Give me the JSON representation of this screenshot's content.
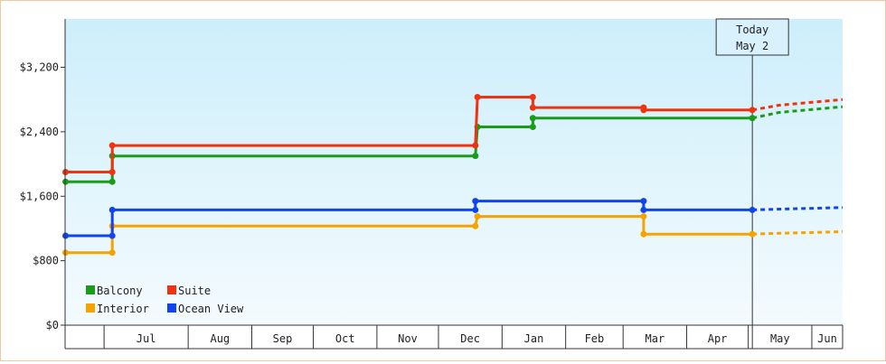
{
  "chart_data": {
    "type": "line",
    "subtype": "step",
    "xlabel": "",
    "ylabel": "",
    "ylim": [
      0,
      3800
    ],
    "y_ticks": [
      {
        "value": 0,
        "label": "$0"
      },
      {
        "value": 800,
        "label": "$800"
      },
      {
        "value": 1600,
        "label": "$1,600"
      },
      {
        "value": 2400,
        "label": "$2,400"
      },
      {
        "value": 3200,
        "label": "$3,200"
      }
    ],
    "xlim": [
      "2013-06-01",
      "2014-06-15"
    ],
    "month_ticks": [
      {
        "label": "Jul",
        "start": "2013-06-20",
        "end": "2013-07-31"
      },
      {
        "label": "Aug",
        "start": "2013-07-31",
        "end": "2013-08-31"
      },
      {
        "label": "Sep",
        "start": "2013-08-31",
        "end": "2013-09-30"
      },
      {
        "label": "Oct",
        "start": "2013-09-30",
        "end": "2013-10-31"
      },
      {
        "label": "Nov",
        "start": "2013-10-31",
        "end": "2013-11-30"
      },
      {
        "label": "Dec",
        "start": "2013-11-30",
        "end": "2013-12-31"
      },
      {
        "label": "Jan",
        "start": "2013-12-31",
        "end": "2014-01-31"
      },
      {
        "label": "Feb",
        "start": "2014-01-31",
        "end": "2014-02-28"
      },
      {
        "label": "Mar",
        "start": "2014-02-28",
        "end": "2014-03-31"
      },
      {
        "label": "Apr",
        "start": "2014-03-31",
        "end": "2014-04-30"
      },
      {
        "label": "May",
        "start": "2014-04-30",
        "end": "2014-05-31"
      },
      {
        "label": "Jun",
        "start": "2014-05-31",
        "end": "2014-06-15"
      }
    ],
    "today": {
      "date": "2014-05-02",
      "label_line1": "Today",
      "label_line2": "May 2"
    },
    "series": [
      {
        "name": "Balcony",
        "color": "#1a9c1a",
        "points": [
          {
            "date": "2013-06-01",
            "value": 1780
          },
          {
            "date": "2013-06-24",
            "value": 1780
          },
          {
            "date": "2013-06-24",
            "value": 2100
          },
          {
            "date": "2013-12-18",
            "value": 2100
          },
          {
            "date": "2013-12-19",
            "value": 2460
          },
          {
            "date": "2014-01-15",
            "value": 2460
          },
          {
            "date": "2014-01-15",
            "value": 2570
          },
          {
            "date": "2014-05-02",
            "value": 2570
          }
        ],
        "forecast": [
          {
            "date": "2014-05-02",
            "value": 2570
          },
          {
            "date": "2014-05-15",
            "value": 2640
          },
          {
            "date": "2014-06-15",
            "value": 2710
          }
        ]
      },
      {
        "name": "Suite",
        "color": "#ee3311",
        "points": [
          {
            "date": "2013-06-01",
            "value": 1900
          },
          {
            "date": "2013-06-24",
            "value": 1900
          },
          {
            "date": "2013-06-24",
            "value": 2230
          },
          {
            "date": "2013-12-18",
            "value": 2230
          },
          {
            "date": "2013-12-19",
            "value": 2830
          },
          {
            "date": "2014-01-15",
            "value": 2830
          },
          {
            "date": "2014-01-15",
            "value": 2700
          },
          {
            "date": "2014-03-10",
            "value": 2700
          },
          {
            "date": "2014-03-10",
            "value": 2670
          },
          {
            "date": "2014-05-02",
            "value": 2670
          }
        ],
        "forecast": [
          {
            "date": "2014-05-02",
            "value": 2670
          },
          {
            "date": "2014-05-15",
            "value": 2730
          },
          {
            "date": "2014-06-15",
            "value": 2800
          }
        ]
      },
      {
        "name": "Interior",
        "color": "#f5a300",
        "points": [
          {
            "date": "2013-06-01",
            "value": 900
          },
          {
            "date": "2013-06-24",
            "value": 900
          },
          {
            "date": "2013-06-24",
            "value": 1230
          },
          {
            "date": "2013-12-18",
            "value": 1230
          },
          {
            "date": "2013-12-19",
            "value": 1350
          },
          {
            "date": "2014-03-10",
            "value": 1350
          },
          {
            "date": "2014-03-10",
            "value": 1130
          },
          {
            "date": "2014-05-02",
            "value": 1130
          }
        ],
        "forecast": [
          {
            "date": "2014-05-02",
            "value": 1130
          },
          {
            "date": "2014-05-15",
            "value": 1140
          },
          {
            "date": "2014-06-15",
            "value": 1160
          }
        ]
      },
      {
        "name": "Ocean View",
        "color": "#1144ee",
        "points": [
          {
            "date": "2013-06-01",
            "value": 1110
          },
          {
            "date": "2013-06-24",
            "value": 1110
          },
          {
            "date": "2013-06-24",
            "value": 1430
          },
          {
            "date": "2013-12-18",
            "value": 1430
          },
          {
            "date": "2013-12-18",
            "value": 1540
          },
          {
            "date": "2014-03-10",
            "value": 1540
          },
          {
            "date": "2014-03-10",
            "value": 1430
          },
          {
            "date": "2014-05-02",
            "value": 1430
          }
        ],
        "forecast": [
          {
            "date": "2014-05-02",
            "value": 1430
          },
          {
            "date": "2014-05-15",
            "value": 1440
          },
          {
            "date": "2014-06-15",
            "value": 1460
          }
        ]
      }
    ],
    "legend": {
      "placement": "bottom-left",
      "order": [
        "Balcony",
        "Suite",
        "Interior",
        "Ocean View"
      ]
    },
    "background_gradient": [
      "#cdeefb",
      "#f4fbfe"
    ]
  }
}
